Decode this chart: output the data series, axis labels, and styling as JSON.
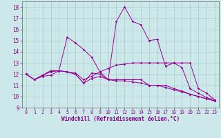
{
  "xlabel": "Windchill (Refroidissement éolien,°C)",
  "ylabel": "",
  "xlim": [
    -0.5,
    23.5
  ],
  "ylim": [
    9,
    18.5
  ],
  "yticks": [
    9,
    10,
    11,
    12,
    13,
    14,
    15,
    16,
    17,
    18
  ],
  "xticks": [
    0,
    1,
    2,
    3,
    4,
    5,
    6,
    7,
    8,
    9,
    10,
    11,
    12,
    13,
    14,
    15,
    16,
    17,
    18,
    19,
    20,
    21,
    22,
    23
  ],
  "background_color": "#cce8e8",
  "grid_color": "#aacccc",
  "line_color": "#990099",
  "series": [
    [
      12.0,
      11.5,
      11.8,
      11.9,
      12.3,
      12.2,
      12.0,
      11.2,
      12.1,
      12.0,
      11.5,
      11.5,
      11.5,
      11.5,
      11.5,
      11.0,
      11.0,
      11.0,
      10.7,
      10.5,
      10.2,
      10.0,
      9.8,
      9.6
    ],
    [
      12.0,
      11.5,
      11.9,
      12.2,
      12.3,
      12.2,
      12.1,
      11.5,
      11.8,
      12.2,
      12.5,
      12.8,
      12.9,
      13.0,
      13.0,
      13.0,
      13.0,
      13.0,
      13.0,
      13.0,
      13.0,
      10.7,
      10.3,
      9.7
    ],
    [
      12.0,
      11.5,
      11.9,
      12.3,
      12.3,
      12.2,
      12.0,
      11.2,
      11.6,
      11.8,
      11.5,
      11.4,
      11.4,
      11.3,
      11.2,
      11.0,
      11.0,
      10.8,
      10.6,
      10.4,
      10.2,
      10.0,
      9.8,
      9.6
    ],
    [
      12.0,
      11.5,
      11.9,
      12.3,
      12.3,
      15.3,
      14.8,
      14.2,
      13.5,
      12.2,
      11.5,
      16.7,
      18.0,
      16.7,
      16.4,
      15.0,
      15.1,
      12.7,
      13.0,
      12.6,
      10.7,
      10.3,
      9.9,
      9.7
    ]
  ],
  "label_color": "#880088",
  "tick_color": "#880088",
  "xlabel_fontsize": 5.5,
  "xtick_fontsize": 4.8,
  "ytick_fontsize": 5.5
}
